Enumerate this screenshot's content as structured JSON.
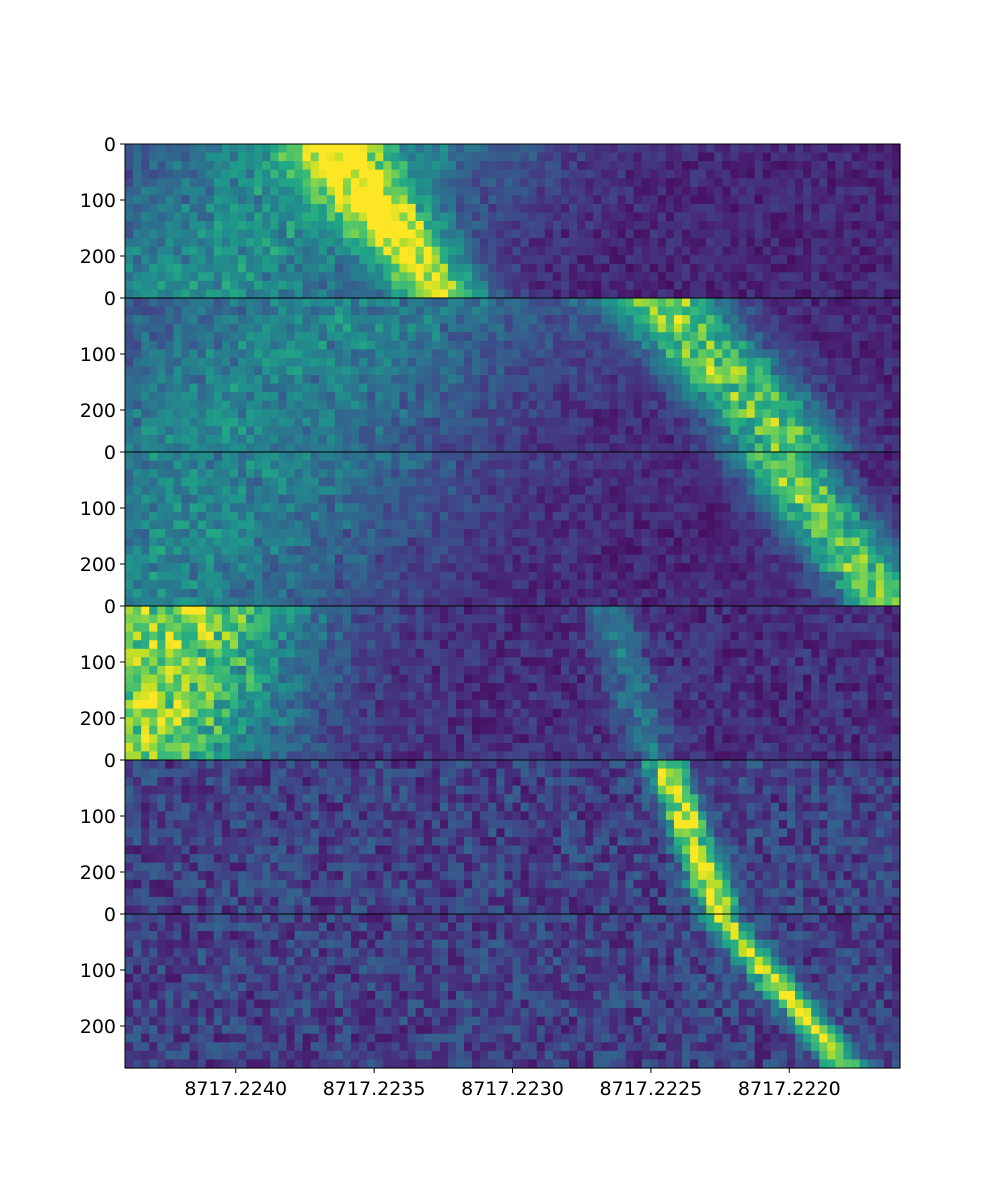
{
  "chart_data": {
    "type": "heatmap",
    "title": "",
    "xlabel": "",
    "ylabel": "",
    "colormap": "viridis",
    "xlim": [
      8717.2244,
      8717.2216
    ],
    "x_ticks": [
      8717.224,
      8717.2235,
      8717.223,
      8717.2225,
      8717.222
    ],
    "x_tick_labels": [
      "8717.2240",
      "8717.2235",
      "8717.2230",
      "8717.2225",
      "8717.2220"
    ],
    "y_ticks": [
      0,
      100,
      200
    ],
    "y_tick_labels": [
      "0",
      "100",
      "200"
    ],
    "panels": [
      {
        "ylim": [
          0,
          275
        ],
        "noise": 0.18,
        "ridges": [
          {
            "x": [
              8717.22365,
              8717.22325,
              8717.22285,
              8717.22245
            ],
            "intensity": 0.9,
            "width": 0.00012
          },
          {
            "x": [
              8717.22365,
              8717.22415
            ],
            "intensity": 0.5,
            "width": 0.0005
          }
        ]
      },
      {
        "ylim": [
          0,
          275
        ],
        "noise": 0.18,
        "ridges": [
          {
            "x": [
              8717.22245,
              8717.222
            ],
            "intensity": 0.85,
            "width": 0.00015
          },
          {
            "x": [
              8717.2236,
              8717.2241
            ],
            "intensity": 0.45,
            "width": 0.0006
          }
        ]
      },
      {
        "ylim": [
          0,
          275
        ],
        "noise": 0.18,
        "ridges": [
          {
            "x": [
              8717.22205,
              8717.22165
            ],
            "intensity": 0.85,
            "width": 0.00012
          },
          {
            "x": [
              8717.224,
              8717.2244
            ],
            "intensity": 0.45,
            "width": 0.0006
          }
        ]
      },
      {
        "ylim": [
          0,
          275
        ],
        "noise": 0.22,
        "ridges": [
          {
            "x": [
              8717.2242,
              8717.2244
            ],
            "intensity": 0.9,
            "width": 0.00035
          },
          {
            "x": [
              8717.22265,
              8717.2225
            ],
            "intensity": 0.35,
            "width": 6e-05
          }
        ]
      },
      {
        "ylim": [
          0,
          275
        ],
        "noise": 0.32,
        "ridges": [
          {
            "x": [
              8717.22245,
              8717.22225
            ],
            "intensity": 0.95,
            "width": 5e-05
          }
        ]
      },
      {
        "ylim": [
          0,
          275
        ],
        "noise": 0.32,
        "ridges": [
          {
            "x": [
              8717.22225,
              8717.2218
            ],
            "intensity": 0.95,
            "width": 5e-05
          }
        ]
      }
    ]
  }
}
